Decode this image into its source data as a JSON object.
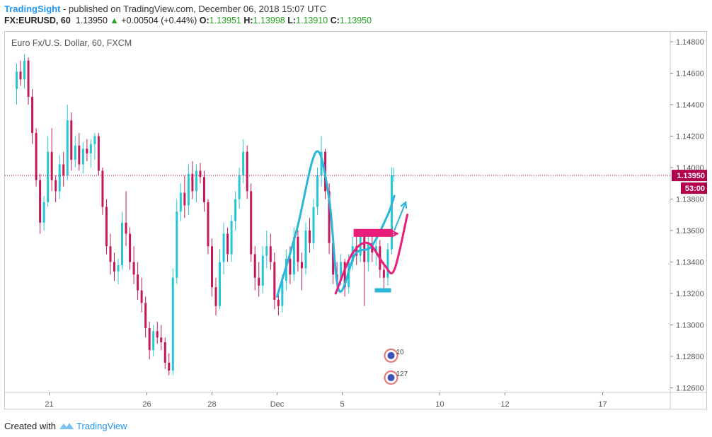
{
  "header": {
    "brand": "TradingSight",
    "published": "- published on TradingView.com, December 06, 2018 15:07 UTC",
    "symbol": "FX:EURUSD, 60",
    "last": "1.13950",
    "change_arrow": "▲",
    "change": "+0.00504 (+0.44%)",
    "o_label": "O:",
    "o_value": "1.13951",
    "h_label": "H:",
    "h_value": "1.13998",
    "l_label": "L:",
    "l_value": "1.13910",
    "c_label": "C:",
    "c_value": "1.13950"
  },
  "footer": {
    "created_with": "Created with",
    "tradingview": "TradingView"
  },
  "chart_data": {
    "type": "candlestick",
    "title": "Euro Fx/U.S. Dollar, 60, FXCM",
    "ylim": [
      1.1255,
      1.1495
    ],
    "y_ticks": [
      "1.14800",
      "1.14600",
      "1.14400",
      "1.14200",
      "1.14000",
      "1.13800",
      "1.13600",
      "1.13400",
      "1.13200",
      "1.13000",
      "1.12800",
      "1.12600"
    ],
    "x_ticks": [
      {
        "label": "21",
        "day": 1
      },
      {
        "label": "26",
        "day": 4
      },
      {
        "label": "28",
        "day": 6
      },
      {
        "label": "Dec",
        "day": 8
      },
      {
        "label": "5",
        "day": 10
      },
      {
        "label": "10",
        "day": 13
      },
      {
        "label": "12",
        "day": 15
      },
      {
        "label": "17",
        "day": 18
      }
    ],
    "price_label": "1.13950",
    "countdown_label": "53:00",
    "current_price": 1.1395,
    "colors": {
      "up": "#26c6da",
      "down": "#c2185b",
      "blue_pattern": "#29b6d8",
      "pink_pattern": "#e91e7a",
      "price_line": "#b0004c"
    },
    "candles": [
      {
        "day": 0.0,
        "o": 1.145,
        "h": 1.1466,
        "l": 1.144,
        "c": 1.1461
      },
      {
        "day": 0.12,
        "o": 1.1461,
        "h": 1.1468,
        "l": 1.1452,
        "c": 1.1456
      },
      {
        "day": 0.24,
        "o": 1.1456,
        "h": 1.1472,
        "l": 1.145,
        "c": 1.1468
      },
      {
        "day": 0.36,
        "o": 1.1468,
        "h": 1.147,
        "l": 1.144,
        "c": 1.1445
      },
      {
        "day": 0.48,
        "o": 1.1445,
        "h": 1.145,
        "l": 1.1415,
        "c": 1.1422
      },
      {
        "day": 0.6,
        "o": 1.1422,
        "h": 1.1425,
        "l": 1.1388,
        "c": 1.1392
      },
      {
        "day": 0.72,
        "o": 1.1392,
        "h": 1.1396,
        "l": 1.1358,
        "c": 1.1365
      },
      {
        "day": 0.84,
        "o": 1.1365,
        "h": 1.1382,
        "l": 1.136,
        "c": 1.1378
      },
      {
        "day": 0.96,
        "o": 1.1378,
        "h": 1.142,
        "l": 1.1375,
        "c": 1.141
      },
      {
        "day": 1.08,
        "o": 1.141,
        "h": 1.1425,
        "l": 1.1385,
        "c": 1.1392
      },
      {
        "day": 1.2,
        "o": 1.1392,
        "h": 1.1395,
        "l": 1.1378,
        "c": 1.1385
      },
      {
        "day": 1.32,
        "o": 1.1385,
        "h": 1.1408,
        "l": 1.138,
        "c": 1.1402
      },
      {
        "day": 1.44,
        "o": 1.1402,
        "h": 1.141,
        "l": 1.1388,
        "c": 1.1395
      },
      {
        "day": 1.56,
        "o": 1.1395,
        "h": 1.144,
        "l": 1.1392,
        "c": 1.143
      },
      {
        "day": 1.68,
        "o": 1.143,
        "h": 1.1435,
        "l": 1.1398,
        "c": 1.1405
      },
      {
        "day": 1.8,
        "o": 1.1405,
        "h": 1.142,
        "l": 1.14,
        "c": 1.1414
      },
      {
        "day": 1.92,
        "o": 1.1414,
        "h": 1.1422,
        "l": 1.1398,
        "c": 1.1402
      },
      {
        "day": 2.04,
        "o": 1.1402,
        "h": 1.1416,
        "l": 1.1396,
        "c": 1.1412
      },
      {
        "day": 2.16,
        "o": 1.1412,
        "h": 1.1418,
        "l": 1.1404,
        "c": 1.1409
      },
      {
        "day": 2.28,
        "o": 1.1409,
        "h": 1.1418,
        "l": 1.14,
        "c": 1.1415
      },
      {
        "day": 2.4,
        "o": 1.1415,
        "h": 1.1422,
        "l": 1.1405,
        "c": 1.142
      },
      {
        "day": 2.52,
        "o": 1.142,
        "h": 1.1422,
        "l": 1.1395,
        "c": 1.1398
      },
      {
        "day": 2.64,
        "o": 1.1398,
        "h": 1.14,
        "l": 1.137,
        "c": 1.1375
      },
      {
        "day": 2.76,
        "o": 1.1375,
        "h": 1.138,
        "l": 1.1345,
        "c": 1.135
      },
      {
        "day": 2.88,
        "o": 1.135,
        "h": 1.1358,
        "l": 1.1332,
        "c": 1.134
      },
      {
        "day": 3.0,
        "o": 1.134,
        "h": 1.1346,
        "l": 1.1328,
        "c": 1.1334
      },
      {
        "day": 3.12,
        "o": 1.1334,
        "h": 1.1342,
        "l": 1.1326,
        "c": 1.1338
      },
      {
        "day": 3.24,
        "o": 1.1338,
        "h": 1.1372,
        "l": 1.1335,
        "c": 1.1365
      },
      {
        "day": 3.36,
        "o": 1.1365,
        "h": 1.1385,
        "l": 1.135,
        "c": 1.1358
      },
      {
        "day": 3.48,
        "o": 1.1358,
        "h": 1.1362,
        "l": 1.1335,
        "c": 1.134
      },
      {
        "day": 3.6,
        "o": 1.134,
        "h": 1.135,
        "l": 1.1326,
        "c": 1.1332
      },
      {
        "day": 3.72,
        "o": 1.1332,
        "h": 1.134,
        "l": 1.1316,
        "c": 1.1322
      },
      {
        "day": 3.84,
        "o": 1.1322,
        "h": 1.133,
        "l": 1.1308,
        "c": 1.1314
      },
      {
        "day": 3.96,
        "o": 1.1314,
        "h": 1.1318,
        "l": 1.1292,
        "c": 1.1298
      },
      {
        "day": 4.08,
        "o": 1.1298,
        "h": 1.1302,
        "l": 1.1278,
        "c": 1.1284
      },
      {
        "day": 4.2,
        "o": 1.1284,
        "h": 1.13,
        "l": 1.128,
        "c": 1.1296
      },
      {
        "day": 4.32,
        "o": 1.1296,
        "h": 1.1302,
        "l": 1.1288,
        "c": 1.1292
      },
      {
        "day": 4.44,
        "o": 1.1292,
        "h": 1.13,
        "l": 1.1284,
        "c": 1.1289
      },
      {
        "day": 4.56,
        "o": 1.1289,
        "h": 1.1292,
        "l": 1.1272,
        "c": 1.1276
      },
      {
        "day": 4.68,
        "o": 1.1276,
        "h": 1.1282,
        "l": 1.1268,
        "c": 1.1271
      },
      {
        "day": 4.8,
        "o": 1.1271,
        "h": 1.1336,
        "l": 1.1268,
        "c": 1.133
      },
      {
        "day": 4.92,
        "o": 1.133,
        "h": 1.138,
        "l": 1.1326,
        "c": 1.1372
      },
      {
        "day": 5.04,
        "o": 1.1372,
        "h": 1.139,
        "l": 1.1366,
        "c": 1.1384
      },
      {
        "day": 5.16,
        "o": 1.1384,
        "h": 1.1395,
        "l": 1.1368,
        "c": 1.1376
      },
      {
        "day": 5.28,
        "o": 1.1376,
        "h": 1.1402,
        "l": 1.137,
        "c": 1.1396
      },
      {
        "day": 5.4,
        "o": 1.1396,
        "h": 1.1404,
        "l": 1.138,
        "c": 1.1385
      },
      {
        "day": 5.52,
        "o": 1.1385,
        "h": 1.1402,
        "l": 1.1378,
        "c": 1.1398
      },
      {
        "day": 5.64,
        "o": 1.1398,
        "h": 1.1403,
        "l": 1.139,
        "c": 1.1394
      },
      {
        "day": 5.76,
        "o": 1.1394,
        "h": 1.1398,
        "l": 1.1372,
        "c": 1.1378
      },
      {
        "day": 5.88,
        "o": 1.1378,
        "h": 1.138,
        "l": 1.1345,
        "c": 1.135
      },
      {
        "day": 6.0,
        "o": 1.135,
        "h": 1.1355,
        "l": 1.1318,
        "c": 1.1324
      },
      {
        "day": 6.12,
        "o": 1.1324,
        "h": 1.133,
        "l": 1.1306,
        "c": 1.1312
      },
      {
        "day": 6.24,
        "o": 1.1312,
        "h": 1.1348,
        "l": 1.131,
        "c": 1.134
      },
      {
        "day": 6.36,
        "o": 1.134,
        "h": 1.1365,
        "l": 1.1332,
        "c": 1.1358
      },
      {
        "day": 6.48,
        "o": 1.1358,
        "h": 1.1362,
        "l": 1.134,
        "c": 1.1345
      },
      {
        "day": 6.6,
        "o": 1.1345,
        "h": 1.137,
        "l": 1.134,
        "c": 1.1366
      },
      {
        "day": 6.72,
        "o": 1.1366,
        "h": 1.1385,
        "l": 1.136,
        "c": 1.138
      },
      {
        "day": 6.84,
        "o": 1.138,
        "h": 1.14,
        "l": 1.1374,
        "c": 1.1395
      },
      {
        "day": 6.96,
        "o": 1.1395,
        "h": 1.1418,
        "l": 1.139,
        "c": 1.141
      },
      {
        "day": 7.08,
        "o": 1.141,
        "h": 1.1414,
        "l": 1.138,
        "c": 1.1385
      },
      {
        "day": 7.2,
        "o": 1.1385,
        "h": 1.139,
        "l": 1.134,
        "c": 1.1345
      },
      {
        "day": 7.32,
        "o": 1.1345,
        "h": 1.135,
        "l": 1.1322,
        "c": 1.133
      },
      {
        "day": 7.44,
        "o": 1.133,
        "h": 1.134,
        "l": 1.1318,
        "c": 1.1325
      },
      {
        "day": 7.56,
        "o": 1.1325,
        "h": 1.135,
        "l": 1.132,
        "c": 1.1344
      },
      {
        "day": 7.68,
        "o": 1.1344,
        "h": 1.136,
        "l": 1.1336,
        "c": 1.135
      },
      {
        "day": 7.8,
        "o": 1.135,
        "h": 1.1358,
        "l": 1.1335,
        "c": 1.134
      },
      {
        "day": 7.92,
        "o": 1.134,
        "h": 1.1346,
        "l": 1.131,
        "c": 1.1316
      },
      {
        "day": 8.04,
        "o": 1.1316,
        "h": 1.1322,
        "l": 1.1306,
        "c": 1.1312
      },
      {
        "day": 8.16,
        "o": 1.1312,
        "h": 1.1332,
        "l": 1.1308,
        "c": 1.1328
      },
      {
        "day": 8.28,
        "o": 1.1328,
        "h": 1.1348,
        "l": 1.1322,
        "c": 1.1342
      },
      {
        "day": 8.4,
        "o": 1.1342,
        "h": 1.135,
        "l": 1.1326,
        "c": 1.1332
      },
      {
        "day": 8.52,
        "o": 1.1332,
        "h": 1.1362,
        "l": 1.1328,
        "c": 1.1356
      },
      {
        "day": 8.64,
        "o": 1.1356,
        "h": 1.136,
        "l": 1.1334,
        "c": 1.134
      },
      {
        "day": 8.76,
        "o": 1.134,
        "h": 1.1346,
        "l": 1.1322,
        "c": 1.1336
      },
      {
        "day": 8.88,
        "o": 1.1336,
        "h": 1.1365,
        "l": 1.1332,
        "c": 1.136
      },
      {
        "day": 9.0,
        "o": 1.136,
        "h": 1.1368,
        "l": 1.1346,
        "c": 1.1352
      },
      {
        "day": 9.12,
        "o": 1.1352,
        "h": 1.138,
        "l": 1.1348,
        "c": 1.1375
      },
      {
        "day": 9.24,
        "o": 1.1375,
        "h": 1.14,
        "l": 1.137,
        "c": 1.1395
      },
      {
        "day": 9.36,
        "o": 1.1395,
        "h": 1.142,
        "l": 1.1388,
        "c": 1.141
      },
      {
        "day": 9.48,
        "o": 1.141,
        "h": 1.1412,
        "l": 1.138,
        "c": 1.1385
      },
      {
        "day": 9.6,
        "o": 1.1385,
        "h": 1.139,
        "l": 1.1345,
        "c": 1.1352
      },
      {
        "day": 9.72,
        "o": 1.1352,
        "h": 1.1355,
        "l": 1.1326,
        "c": 1.1332
      },
      {
        "day": 9.84,
        "o": 1.1332,
        "h": 1.134,
        "l": 1.1322,
        "c": 1.1328
      },
      {
        "day": 9.96,
        "o": 1.1328,
        "h": 1.1345,
        "l": 1.1325,
        "c": 1.134
      },
      {
        "day": 10.08,
        "o": 1.134,
        "h": 1.1342,
        "l": 1.1318,
        "c": 1.1324
      },
      {
        "day": 10.2,
        "o": 1.1324,
        "h": 1.1345,
        "l": 1.132,
        "c": 1.134
      },
      {
        "day": 10.32,
        "o": 1.134,
        "h": 1.1356,
        "l": 1.1335,
        "c": 1.135
      },
      {
        "day": 10.44,
        "o": 1.135,
        "h": 1.1358,
        "l": 1.1338,
        "c": 1.1344
      },
      {
        "day": 10.56,
        "o": 1.1344,
        "h": 1.136,
        "l": 1.134,
        "c": 1.1356
      },
      {
        "day": 10.68,
        "o": 1.1356,
        "h": 1.136,
        "l": 1.1312,
        "c": 1.134
      },
      {
        "day": 10.8,
        "o": 1.134,
        "h": 1.1358,
        "l": 1.1334,
        "c": 1.1352
      },
      {
        "day": 10.92,
        "o": 1.1352,
        "h": 1.136,
        "l": 1.134,
        "c": 1.1346
      },
      {
        "day": 11.04,
        "o": 1.1346,
        "h": 1.1356,
        "l": 1.1338,
        "c": 1.135
      },
      {
        "day": 11.16,
        "o": 1.135,
        "h": 1.1354,
        "l": 1.133,
        "c": 1.1335
      },
      {
        "day": 11.28,
        "o": 1.1335,
        "h": 1.134,
        "l": 1.1322,
        "c": 1.133
      },
      {
        "day": 11.4,
        "o": 1.133,
        "h": 1.1352,
        "l": 1.1325,
        "c": 1.1348
      },
      {
        "day": 11.52,
        "o": 1.1348,
        "h": 1.14,
        "l": 1.1345,
        "c": 1.1395
      },
      {
        "day": 11.58,
        "o": 1.1395,
        "h": 1.14,
        "l": 1.1391,
        "c": 1.1395
      }
    ],
    "annotations": {
      "blue_curve": [
        [
          8.0,
          1.1318
        ],
        [
          8.6,
          1.136
        ],
        [
          9.2,
          1.141
        ],
        [
          9.6,
          1.138
        ],
        [
          9.9,
          1.1322
        ],
        [
          10.4,
          1.1345
        ],
        [
          10.9,
          1.135
        ],
        [
          11.4,
          1.137
        ],
        [
          11.6,
          1.1382
        ]
      ],
      "pink_curve": [
        [
          9.8,
          1.132
        ],
        [
          10.3,
          1.1345
        ],
        [
          10.8,
          1.1352
        ],
        [
          11.3,
          1.1338
        ],
        [
          11.6,
          1.1335
        ],
        [
          12.0,
          1.137
        ]
      ],
      "pink_rect": {
        "x0": 10.35,
        "x1": 11.55,
        "y0": 1.1356,
        "y1": 1.1361
      },
      "blue_support": {
        "x0": 11.0,
        "x1": 11.5,
        "y": 1.1322
      },
      "pink_arrow": {
        "from": [
          11.45,
          1.1358
        ],
        "to": [
          11.7,
          1.1358
        ]
      },
      "blue_arrow": {
        "from": [
          11.6,
          1.136
        ],
        "to": [
          11.95,
          1.1378
        ]
      },
      "event_icons": [
        {
          "day": 11.5,
          "price": 1.12805,
          "label": "10"
        },
        {
          "day": 11.5,
          "price": 1.12665,
          "label": "127"
        }
      ]
    }
  }
}
